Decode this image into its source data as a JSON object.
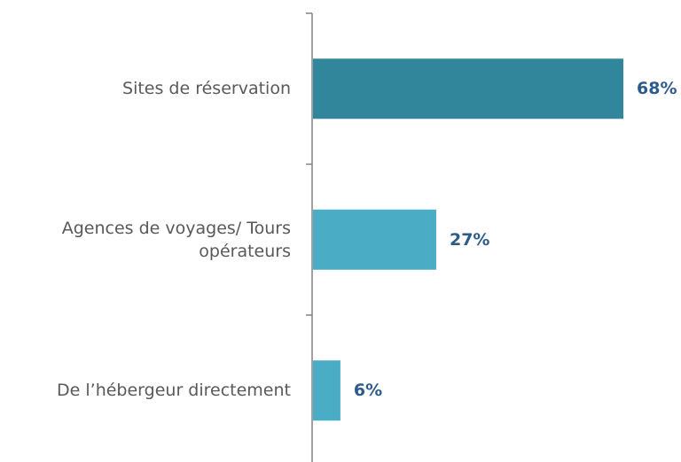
{
  "chart_data": {
    "type": "barh",
    "categories": [
      "Sites de réservation",
      "Agences de voyages/ Tours\nopérateurs",
      "De l’hébergeur directement"
    ],
    "values": [
      68,
      27,
      6
    ],
    "value_labels": [
      "68%",
      "27%",
      "6%"
    ],
    "colors": [
      "#31869b",
      "#4bacc6",
      "#4bacc6"
    ],
    "label_color": "#2d5b8b"
  }
}
